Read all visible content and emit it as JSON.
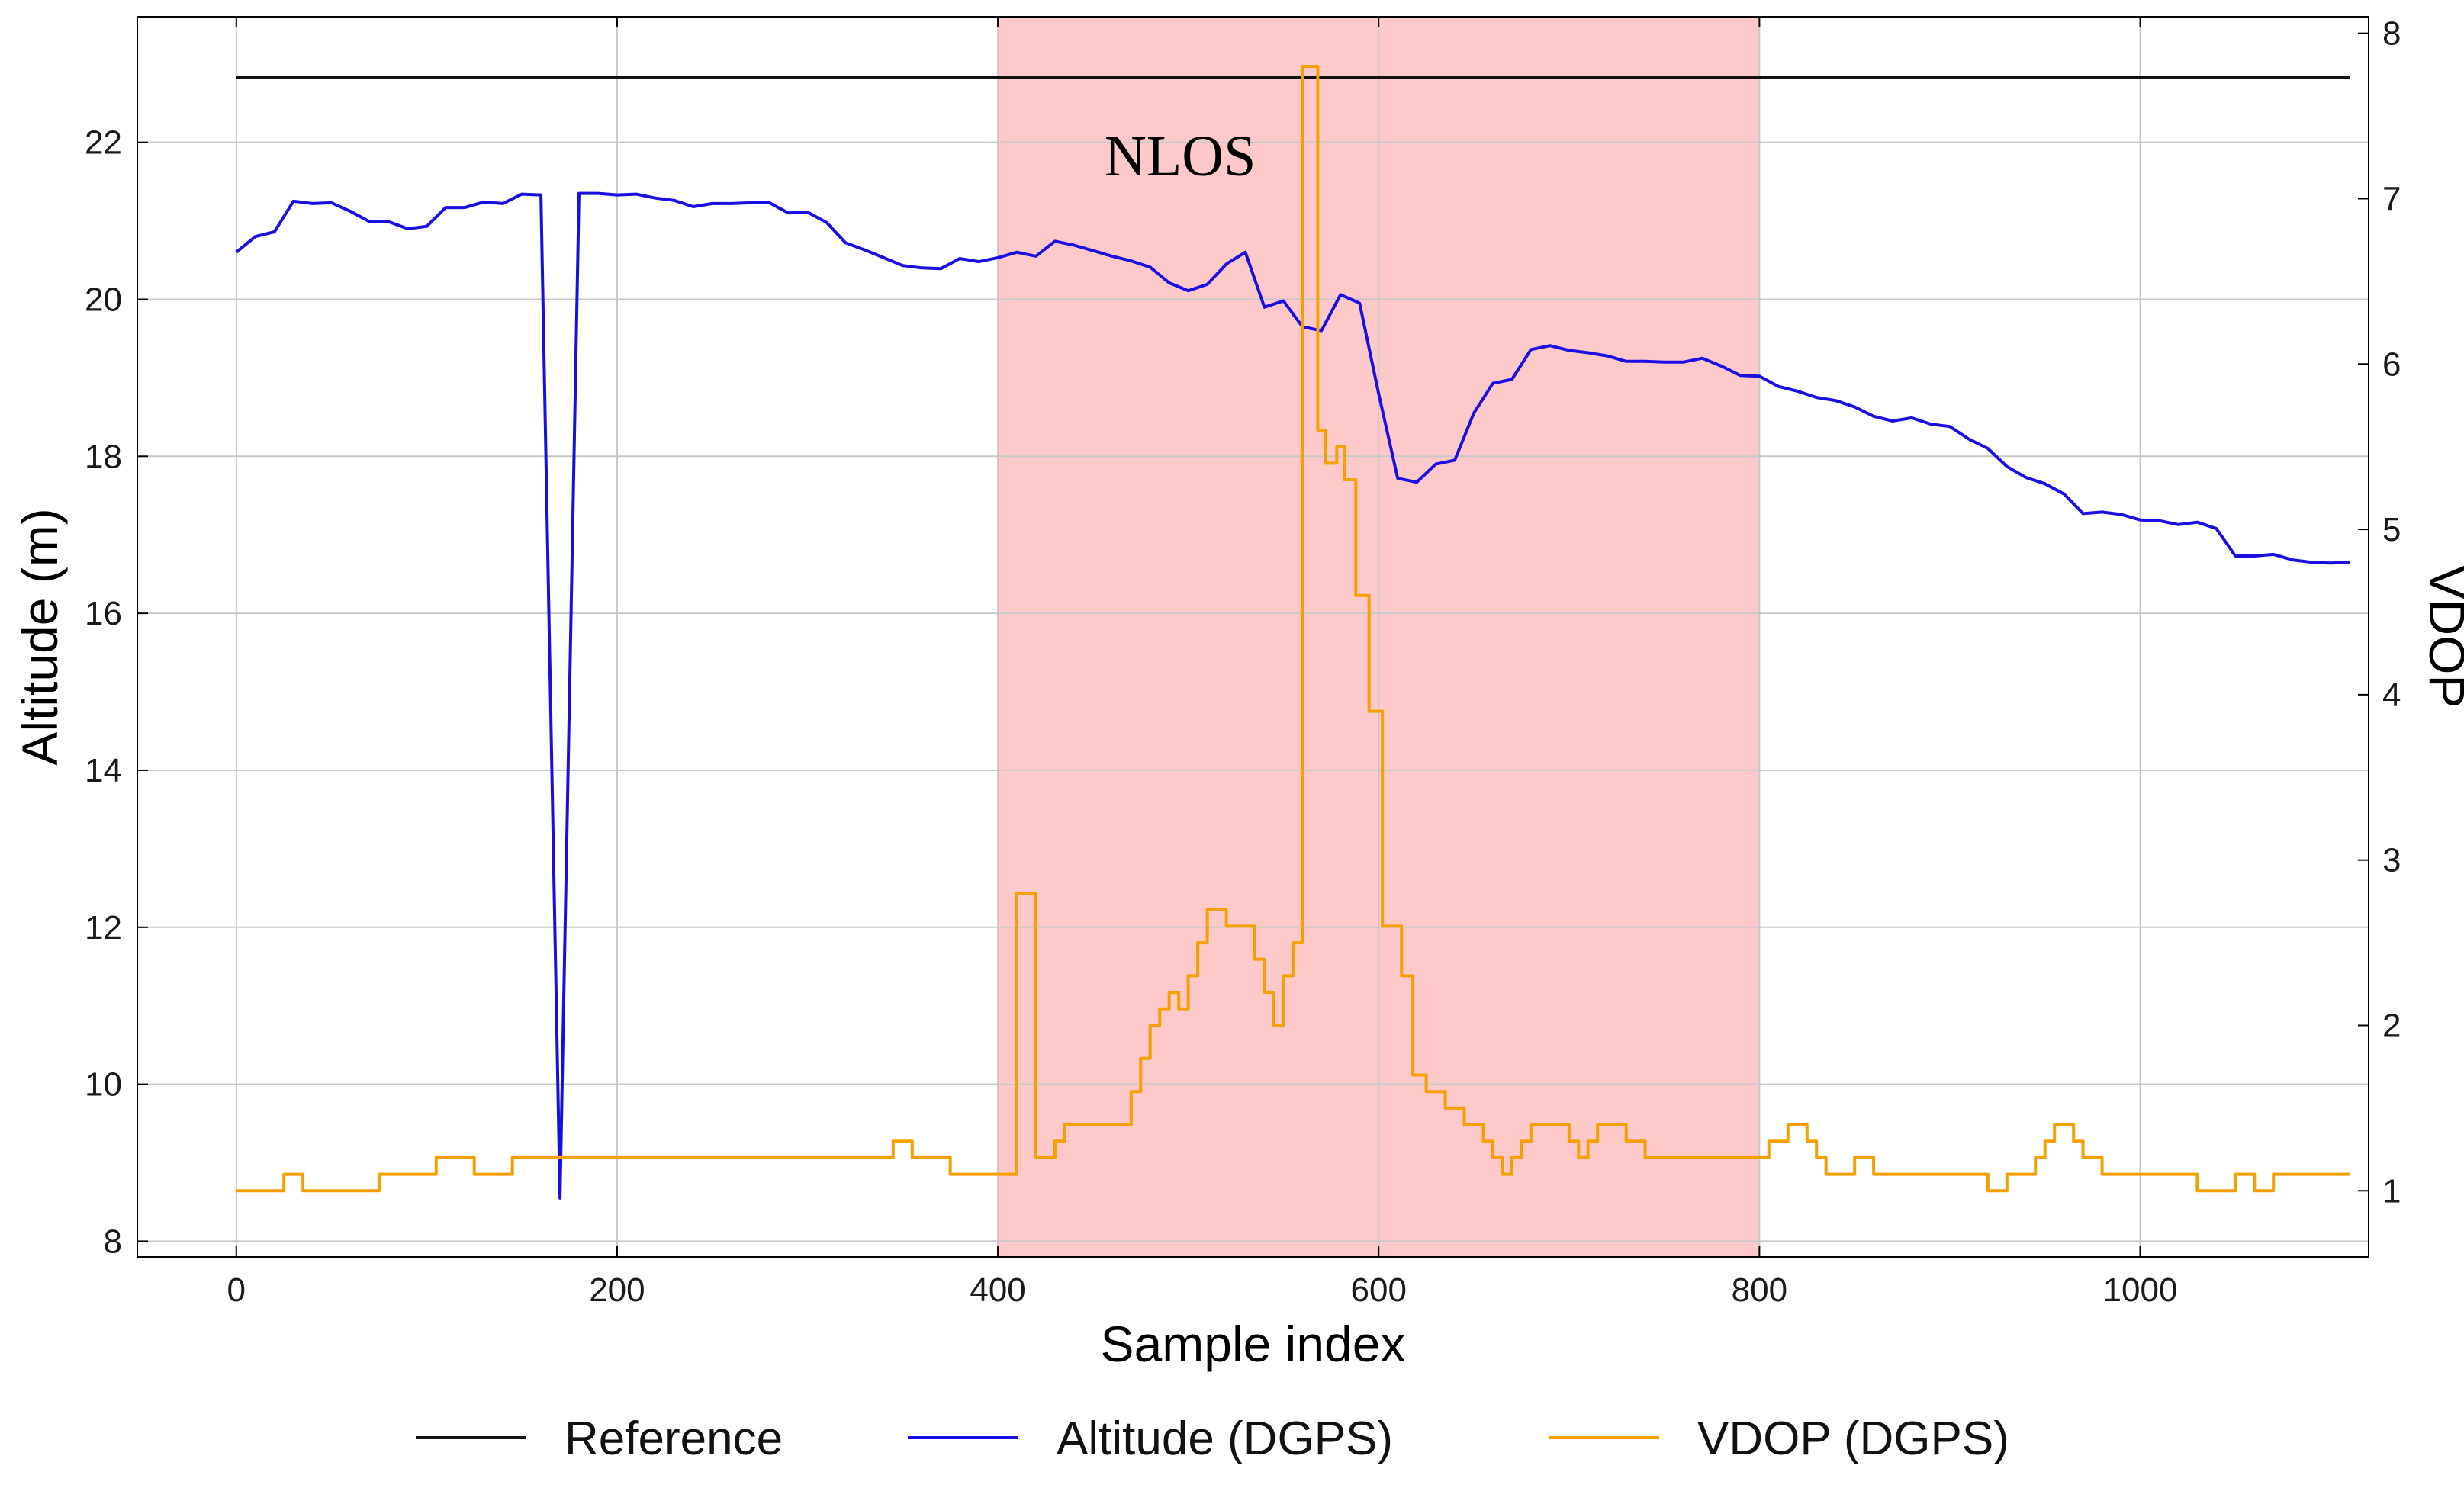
{
  "chart_data": {
    "type": "line",
    "title": "",
    "xlabel": "Sample index",
    "ylabel": "Altitude (m)",
    "y2label": "VDOP",
    "xlim": [
      -52,
      1120
    ],
    "ylim": [
      7.8,
      23.6
    ],
    "y2lim": [
      0.6,
      8.1
    ],
    "xticks": [
      0,
      200,
      400,
      600,
      800,
      1000
    ],
    "yticks": [
      8,
      10,
      12,
      14,
      16,
      18,
      20,
      22
    ],
    "y2ticks": [
      1,
      2,
      3,
      4,
      5,
      6,
      7,
      8
    ],
    "grid": true,
    "shaded_region": {
      "label": "NLOS",
      "x_start": 400,
      "x_end": 800,
      "color": "#ffc9c9"
    },
    "legend": {
      "placement": "bottom"
    },
    "series": [
      {
        "name": "Reference",
        "axis": "left",
        "color": "#111111",
        "step": false,
        "points": [
          [
            0,
            22.83
          ],
          [
            1110,
            22.83
          ]
        ]
      },
      {
        "name": "Altitude (DGPS)",
        "axis": "left",
        "color": "#1a0fe0",
        "step": false,
        "points": [
          [
            0,
            20.6
          ],
          [
            10,
            20.8
          ],
          [
            20,
            20.86
          ],
          [
            30,
            21.25
          ],
          [
            40,
            21.22
          ],
          [
            50,
            21.23
          ],
          [
            60,
            21.12
          ],
          [
            70,
            20.99
          ],
          [
            80,
            20.99
          ],
          [
            90,
            20.9
          ],
          [
            100,
            20.93
          ],
          [
            110,
            21.17
          ],
          [
            120,
            21.17
          ],
          [
            130,
            21.24
          ],
          [
            140,
            21.22
          ],
          [
            150,
            21.34
          ],
          [
            160,
            21.33
          ],
          [
            170,
            8.55
          ],
          [
            180,
            21.35
          ],
          [
            190,
            21.35
          ],
          [
            200,
            21.33
          ],
          [
            210,
            21.34
          ],
          [
            220,
            21.29
          ],
          [
            230,
            21.26
          ],
          [
            240,
            21.18
          ],
          [
            250,
            21.22
          ],
          [
            260,
            21.22
          ],
          [
            270,
            21.23
          ],
          [
            280,
            21.23
          ],
          [
            290,
            21.1
          ],
          [
            300,
            21.11
          ],
          [
            310,
            20.98
          ],
          [
            320,
            20.72
          ],
          [
            330,
            20.63
          ],
          [
            340,
            20.53
          ],
          [
            350,
            20.43
          ],
          [
            360,
            20.4
          ],
          [
            370,
            20.39
          ],
          [
            380,
            20.52
          ],
          [
            390,
            20.48
          ],
          [
            400,
            20.53
          ],
          [
            410,
            20.6
          ],
          [
            420,
            20.55
          ],
          [
            430,
            20.74
          ],
          [
            440,
            20.69
          ],
          [
            450,
            20.62
          ],
          [
            460,
            20.55
          ],
          [
            470,
            20.49
          ],
          [
            480,
            20.41
          ],
          [
            490,
            20.21
          ],
          [
            500,
            20.11
          ],
          [
            510,
            20.19
          ],
          [
            520,
            20.45
          ],
          [
            530,
            20.6
          ],
          [
            540,
            19.9
          ],
          [
            550,
            19.98
          ],
          [
            560,
            19.65
          ],
          [
            570,
            19.6
          ],
          [
            580,
            20.06
          ],
          [
            590,
            19.95
          ],
          [
            600,
            18.8
          ],
          [
            610,
            17.72
          ],
          [
            620,
            17.67
          ],
          [
            630,
            17.9
          ],
          [
            640,
            17.95
          ],
          [
            650,
            18.55
          ],
          [
            660,
            18.93
          ],
          [
            670,
            18.98
          ],
          [
            680,
            19.36
          ],
          [
            690,
            19.41
          ],
          [
            700,
            19.35
          ],
          [
            710,
            19.32
          ],
          [
            720,
            19.28
          ],
          [
            730,
            19.21
          ],
          [
            740,
            19.21
          ],
          [
            750,
            19.2
          ],
          [
            760,
            19.2
          ],
          [
            770,
            19.25
          ],
          [
            780,
            19.15
          ],
          [
            790,
            19.03
          ],
          [
            800,
            19.02
          ],
          [
            810,
            18.89
          ],
          [
            820,
            18.83
          ],
          [
            830,
            18.75
          ],
          [
            840,
            18.71
          ],
          [
            850,
            18.63
          ],
          [
            860,
            18.51
          ],
          [
            870,
            18.45
          ],
          [
            880,
            18.49
          ],
          [
            890,
            18.41
          ],
          [
            900,
            18.38
          ],
          [
            910,
            18.22
          ],
          [
            920,
            18.1
          ],
          [
            930,
            17.87
          ],
          [
            940,
            17.73
          ],
          [
            950,
            17.65
          ],
          [
            960,
            17.52
          ],
          [
            970,
            17.27
          ],
          [
            980,
            17.29
          ],
          [
            990,
            17.26
          ],
          [
            1000,
            17.19
          ],
          [
            1010,
            17.18
          ],
          [
            1020,
            17.13
          ],
          [
            1030,
            17.16
          ],
          [
            1040,
            17.08
          ],
          [
            1050,
            16.73
          ],
          [
            1060,
            16.73
          ],
          [
            1070,
            16.75
          ],
          [
            1080,
            16.68
          ],
          [
            1090,
            16.65
          ],
          [
            1100,
            16.64
          ],
          [
            1110,
            16.65
          ]
        ]
      },
      {
        "name": "VDOP (DGPS)",
        "axis": "right",
        "color": "#f5a000",
        "step": true,
        "points": [
          [
            0,
            1.0
          ],
          [
            25,
            1.1
          ],
          [
            35,
            1.0
          ],
          [
            75,
            1.1
          ],
          [
            105,
            1.2
          ],
          [
            125,
            1.1
          ],
          [
            145,
            1.2
          ],
          [
            345,
            1.3
          ],
          [
            355,
            1.2
          ],
          [
            375,
            1.1
          ],
          [
            400,
            1.1
          ],
          [
            410,
            2.8
          ],
          [
            420,
            1.2
          ],
          [
            430,
            1.3
          ],
          [
            435,
            1.4
          ],
          [
            470,
            1.6
          ],
          [
            475,
            1.8
          ],
          [
            480,
            2.0
          ],
          [
            485,
            2.1
          ],
          [
            490,
            2.2
          ],
          [
            495,
            2.1
          ],
          [
            500,
            2.3
          ],
          [
            505,
            2.5
          ],
          [
            510,
            2.7
          ],
          [
            520,
            2.6
          ],
          [
            535,
            2.4
          ],
          [
            540,
            2.2
          ],
          [
            545,
            2.0
          ],
          [
            550,
            2.3
          ],
          [
            555,
            2.5
          ],
          [
            560,
            7.8
          ],
          [
            568,
            5.6
          ],
          [
            572,
            5.4
          ],
          [
            578,
            5.5
          ],
          [
            582,
            5.3
          ],
          [
            588,
            4.6
          ],
          [
            595,
            3.9
          ],
          [
            602,
            2.6
          ],
          [
            612,
            2.3
          ],
          [
            618,
            1.7
          ],
          [
            625,
            1.6
          ],
          [
            635,
            1.5
          ],
          [
            645,
            1.4
          ],
          [
            655,
            1.3
          ],
          [
            660,
            1.2
          ],
          [
            665,
            1.1
          ],
          [
            670,
            1.2
          ],
          [
            675,
            1.3
          ],
          [
            680,
            1.4
          ],
          [
            700,
            1.3
          ],
          [
            705,
            1.2
          ],
          [
            710,
            1.3
          ],
          [
            715,
            1.4
          ],
          [
            730,
            1.3
          ],
          [
            740,
            1.2
          ],
          [
            805,
            1.3
          ],
          [
            815,
            1.4
          ],
          [
            825,
            1.3
          ],
          [
            830,
            1.2
          ],
          [
            835,
            1.1
          ],
          [
            850,
            1.2
          ],
          [
            860,
            1.1
          ],
          [
            920,
            1.0
          ],
          [
            930,
            1.1
          ],
          [
            945,
            1.2
          ],
          [
            950,
            1.3
          ],
          [
            955,
            1.4
          ],
          [
            965,
            1.3
          ],
          [
            970,
            1.2
          ],
          [
            980,
            1.1
          ],
          [
            1030,
            1.0
          ],
          [
            1050,
            1.1
          ],
          [
            1060,
            1.0
          ],
          [
            1070,
            1.1
          ],
          [
            1110,
            1.1
          ]
        ]
      }
    ]
  }
}
